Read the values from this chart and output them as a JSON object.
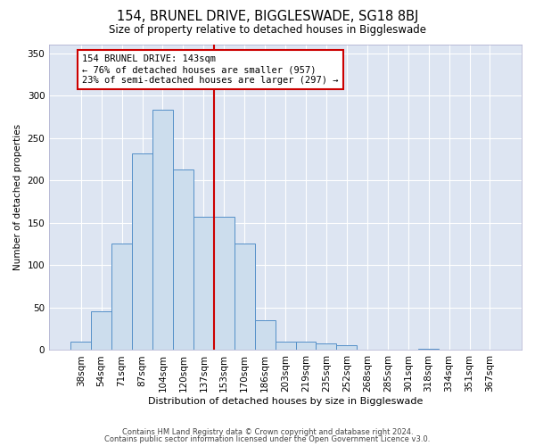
{
  "title": "154, BRUNEL DRIVE, BIGGLESWADE, SG18 8BJ",
  "subtitle": "Size of property relative to detached houses in Biggleswade",
  "xlabel": "Distribution of detached houses by size in Biggleswade",
  "ylabel": "Number of detached properties",
  "footnote1": "Contains HM Land Registry data © Crown copyright and database right 2024.",
  "footnote2": "Contains public sector information licensed under the Open Government Licence v3.0.",
  "bar_labels": [
    "38sqm",
    "54sqm",
    "71sqm",
    "87sqm",
    "104sqm",
    "120sqm",
    "137sqm",
    "153sqm",
    "170sqm",
    "186sqm",
    "203sqm",
    "219sqm",
    "235sqm",
    "252sqm",
    "268sqm",
    "285sqm",
    "301sqm",
    "318sqm",
    "334sqm",
    "351sqm",
    "367sqm"
  ],
  "bar_heights": [
    10,
    46,
    126,
    232,
    283,
    213,
    157,
    157,
    126,
    35,
    10,
    10,
    8,
    6,
    0,
    0,
    0,
    2,
    0,
    0,
    1
  ],
  "bar_color": "#ccdded",
  "bar_edge_color": "#5590c8",
  "vline_x_idx": 6.5,
  "vline_color": "#cc0000",
  "annotation_text": "154 BRUNEL DRIVE: 143sqm\n← 76% of detached houses are smaller (957)\n23% of semi-detached houses are larger (297) →",
  "ylim": [
    0,
    360
  ],
  "yticks": [
    0,
    50,
    100,
    150,
    200,
    250,
    300,
    350
  ],
  "bg_color": "#dde5f2"
}
